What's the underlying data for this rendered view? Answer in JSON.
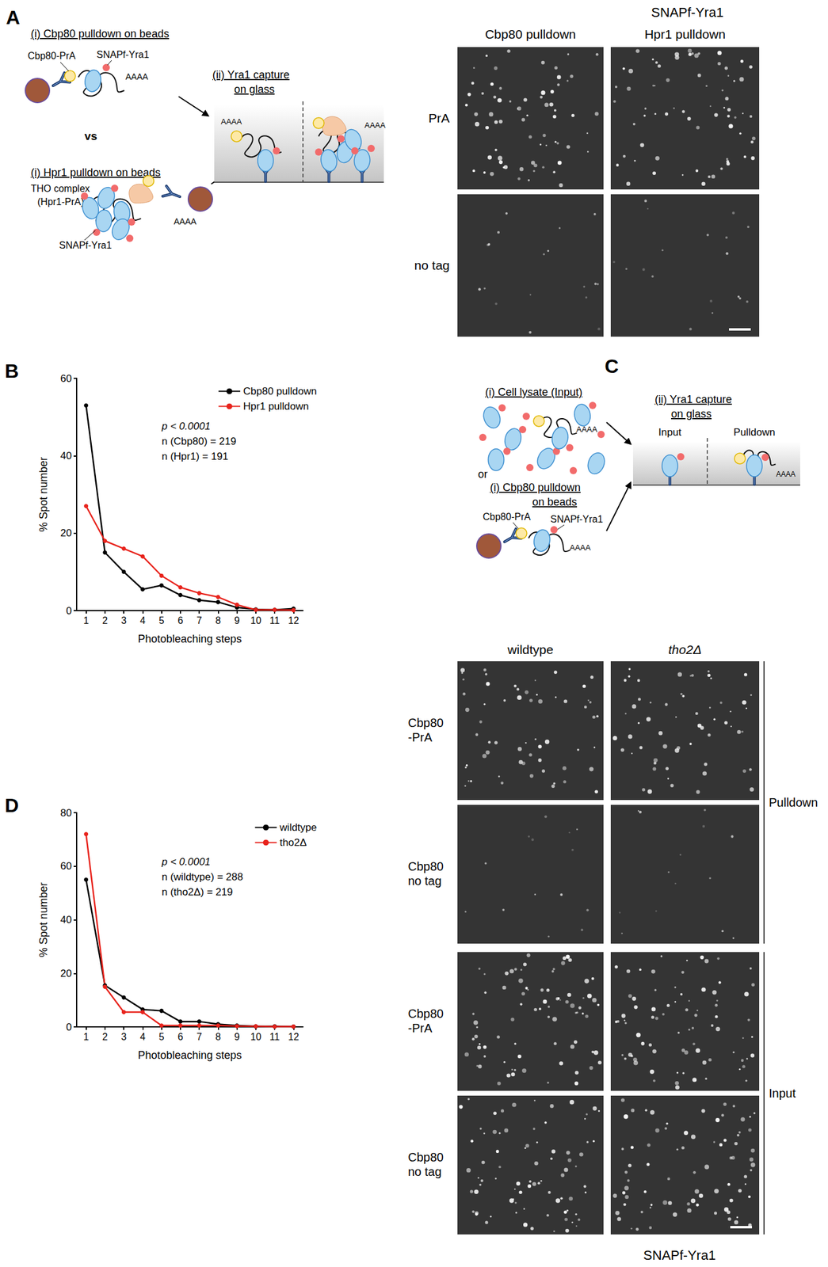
{
  "panels": {
    "A": {
      "label": "A",
      "schematic": {
        "cbp80_title": "(i) Cbp80 pulldown on beads",
        "cbp80_prA": "Cbp80-PrA",
        "snap": "SNAPf-Yra1",
        "polyA": "AAAA",
        "vs": "vs",
        "hpr1_title": "(i) Hpr1 pulldown on beads",
        "tho_lines": [
          "THO complex",
          "(Hpr1-PrA)"
        ],
        "capture_lines": [
          "(ii) Yra1 capture",
          "on glass"
        ]
      },
      "images": {
        "title": "SNAPf-Yra1",
        "columns": [
          "Cbp80 pulldown",
          "Hpr1 pulldown"
        ],
        "rows": [
          "PrA",
          "no tag"
        ]
      }
    },
    "C": {
      "label": "C",
      "schematic": {
        "lysate_title": "(i) Cell lysate (Input)",
        "or": "or",
        "cbp80_title_lines": [
          "(i) Cbp80 pulldown",
          "on beads"
        ],
        "cbp80_prA": "Cbp80-PrA",
        "snap": "SNAPf-Yra1",
        "polyA": "AAAA",
        "capture_lines": [
          "(ii) Yra1 capture",
          "on glass"
        ],
        "glass_labels": [
          "Input",
          "Pulldown"
        ]
      },
      "images": {
        "columns": [
          "wildtype",
          "tho2Δ"
        ],
        "groups": [
          {
            "label": "Pulldown",
            "rows": [
              [
                "Cbp80",
                "-PrA"
              ],
              [
                "Cbp80",
                "no tag"
              ]
            ]
          },
          {
            "label": "Input",
            "rows": [
              [
                "Cbp80",
                "-PrA"
              ],
              [
                "Cbp80",
                "no tag"
              ]
            ]
          }
        ],
        "caption": "SNAPf-Yra1"
      }
    }
  },
  "chart_data": [
    {
      "panel": "B",
      "type": "line",
      "x_label": "Photobleaching steps",
      "y_label": "% Spot number",
      "categories": [
        1,
        2,
        3,
        4,
        5,
        6,
        7,
        8,
        9,
        10,
        11,
        12
      ],
      "series": [
        {
          "name": "Cbp80 pulldown",
          "color": "#000000",
          "marker": "circle",
          "line_style": "solid",
          "values": [
            53,
            15,
            10,
            5.5,
            6.5,
            4,
            2.7,
            2.2,
            0.8,
            0.3,
            0.2,
            0.5
          ]
        },
        {
          "name": "Hpr1 pulldown",
          "color": "#e8231c",
          "marker": "circle",
          "line_style": "solid",
          "values": [
            27,
            18,
            16,
            14,
            9,
            6,
            4.5,
            3.5,
            1.5,
            0.2,
            0.2,
            0.1
          ]
        }
      ],
      "ylim": [
        0,
        60
      ],
      "yticks": [
        0,
        20,
        40,
        60
      ],
      "grid": false,
      "legend": "upper right",
      "annotations": [
        "p < 0.0001",
        "n (Cbp80) = 219",
        "n (Hpr1) = 191"
      ]
    },
    {
      "panel": "D",
      "type": "line",
      "x_label": "Photobleaching steps",
      "y_label": "% Spot number",
      "categories": [
        1,
        2,
        3,
        4,
        5,
        6,
        7,
        8,
        9,
        10,
        11,
        12
      ],
      "series": [
        {
          "name": "wildtype",
          "color": "#000000",
          "marker": "circle",
          "line_style": "solid",
          "values": [
            55,
            15.5,
            11,
            6.5,
            6,
            2,
            2,
            1,
            0.5,
            0.2,
            0.2,
            0.1
          ]
        },
        {
          "name": "tho2Δ",
          "color": "#e8231c",
          "marker": "circle",
          "line_style": "solid",
          "values": [
            72,
            15,
            5.5,
            5.5,
            0.5,
            0.5,
            0.5,
            0.5,
            0.3,
            0.2,
            0.1,
            0.1
          ]
        }
      ],
      "ylim": [
        0,
        80
      ],
      "yticks": [
        0,
        20,
        40,
        60,
        80
      ],
      "grid": false,
      "legend": "upper right",
      "annotations": [
        "p < 0.0001",
        "n (wildtype) = 288",
        "n (tho2Δ) = 219"
      ]
    }
  ]
}
